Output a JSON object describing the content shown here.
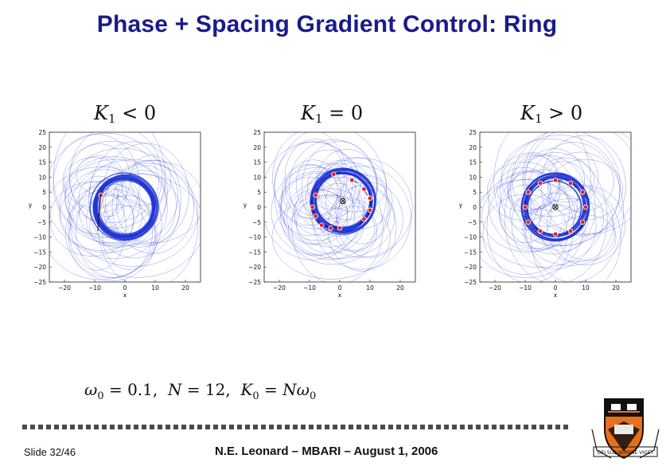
{
  "title": "Phase + Spacing Gradient Control:  Ring",
  "panels": [
    {
      "k": "K",
      "sub": "1",
      "op": "<",
      "val": "0"
    },
    {
      "k": "K",
      "sub": "1",
      "op": "=",
      "val": "0"
    },
    {
      "k": "K",
      "sub": "1",
      "op": ">",
      "val": "0"
    }
  ],
  "chart_data": [
    {
      "type": "line",
      "xlabel": "x",
      "ylabel": "y",
      "xlim": [
        -25,
        25
      ],
      "ylim": [
        -25,
        25
      ],
      "xticks": [
        "−20",
        "−10",
        "0",
        "10",
        "20"
      ],
      "yticks": [
        "25",
        "20",
        "15",
        "10",
        "5",
        "0",
        "−5",
        "−10",
        "−15",
        "−20",
        "−25"
      ],
      "ring": {
        "cx": 0,
        "cy": 0,
        "r": 10
      },
      "particles": [
        [
          -8,
          4
        ]
      ],
      "center_marker": false,
      "color": "#1f33d6"
    },
    {
      "type": "line",
      "xlabel": "x",
      "ylabel": "y",
      "xlim": [
        -25,
        25
      ],
      "ylim": [
        -25,
        25
      ],
      "xticks": [
        "−20",
        "−10",
        "0",
        "10",
        "20"
      ],
      "yticks": [
        "25",
        "20",
        "15",
        "10",
        "5",
        "0",
        "−5",
        "−10",
        "−15",
        "−20",
        "−25"
      ],
      "ring": {
        "cx": 1,
        "cy": 2,
        "r": 10
      },
      "particles": [
        [
          -2,
          11
        ],
        [
          4,
          9
        ],
        [
          8,
          6
        ],
        [
          10,
          3
        ],
        [
          10,
          -1
        ],
        [
          8,
          -4
        ],
        [
          -8,
          4
        ],
        [
          -9,
          0
        ],
        [
          -8,
          -3
        ],
        [
          -6,
          -6
        ],
        [
          -3,
          -7
        ],
        [
          0,
          -7
        ]
      ],
      "center_marker": true,
      "color": "#1f33d6"
    },
    {
      "type": "line",
      "xlabel": "x",
      "ylabel": "y",
      "xlim": [
        -25,
        25
      ],
      "ylim": [
        -25,
        25
      ],
      "xticks": [
        "−20",
        "−10",
        "0",
        "10",
        "20"
      ],
      "yticks": [
        "25",
        "20",
        "15",
        "10",
        "5",
        "0",
        "−5",
        "−10",
        "−15",
        "−20",
        "−25"
      ],
      "ring": {
        "cx": 0,
        "cy": 0,
        "r": 10
      },
      "particles": [
        [
          -5,
          8
        ],
        [
          0,
          9
        ],
        [
          5,
          8
        ],
        [
          9,
          5
        ],
        [
          10,
          0
        ],
        [
          9,
          -5
        ],
        [
          5,
          -8
        ],
        [
          0,
          -9
        ],
        [
          -5,
          -8
        ],
        [
          -9,
          -5
        ],
        [
          -10,
          0
        ],
        [
          -9,
          5
        ]
      ],
      "center_marker": true,
      "color": "#1f33d6"
    }
  ],
  "formula": {
    "omega": "ω",
    "w_sub": "0",
    "w_val": "= 0.1,",
    "n": "N",
    "n_val": "= 12,",
    "k": "K",
    "k_sub": "0",
    "k_eq": "=",
    "k_n": "N",
    "k_omega": "ω",
    "k_osub": "0"
  },
  "footer": {
    "slide": "Slide 32/46",
    "center": "N.E. Leonard – MBARI –  August 1, 2006"
  },
  "logo": {
    "motto": "DEI SUB NUMINE VIGET",
    "colors": {
      "orange": "#e8701a",
      "black": "#111111"
    }
  }
}
